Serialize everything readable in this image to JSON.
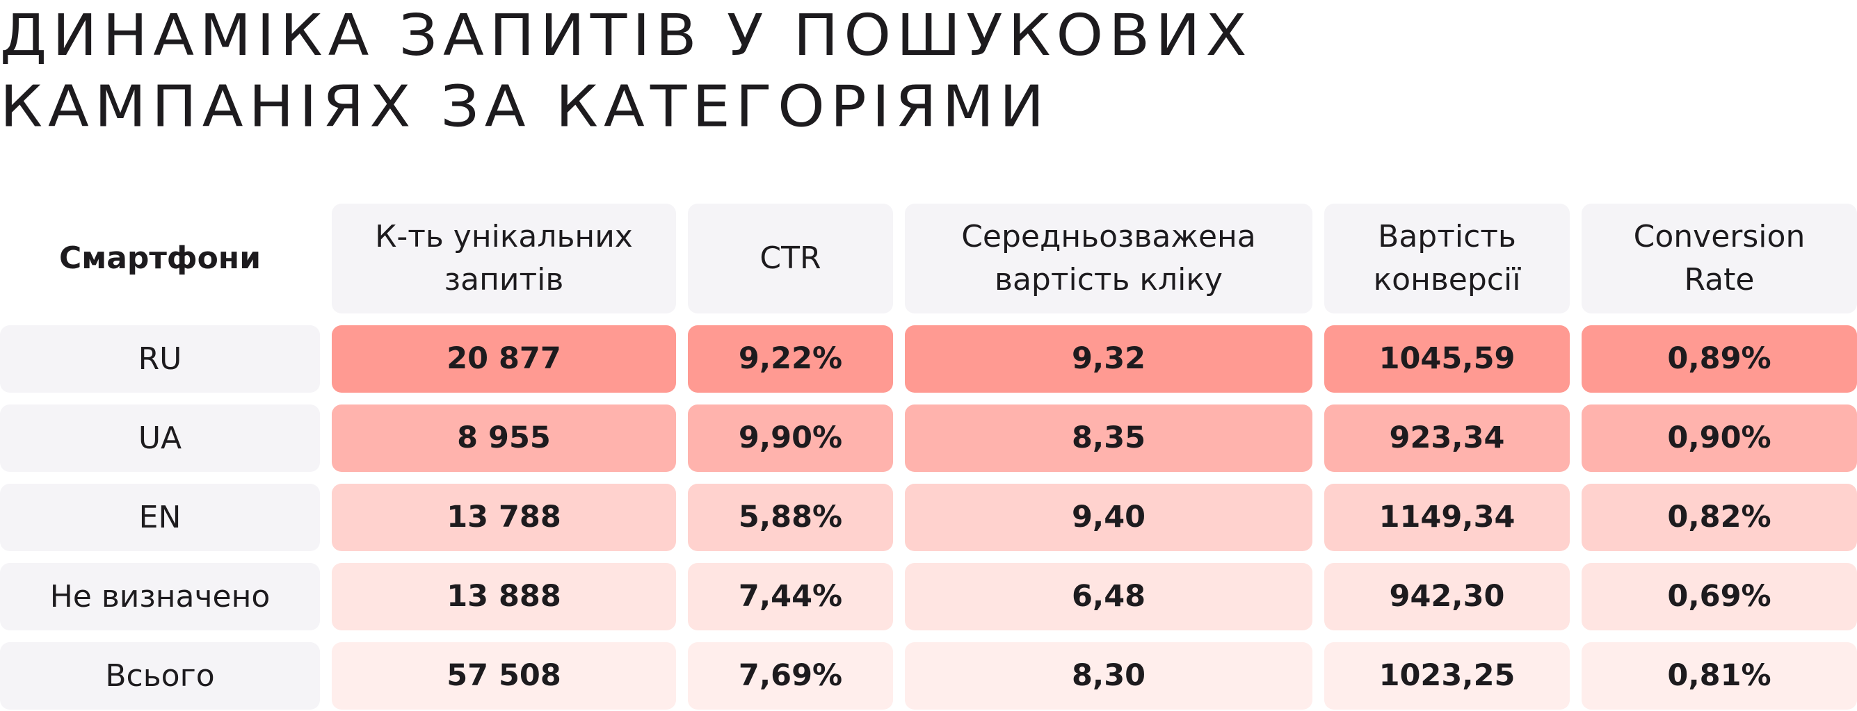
{
  "title": {
    "line1": "ДИНАМІКА ЗАПИТІВ У ПОШУКОВИХ",
    "line2": "КАМПАНІЯХ ЗА КАТЕГОРІЯМИ"
  },
  "table": {
    "header": [
      "Смартфони",
      "К-ть унікальних запитів",
      "CTR",
      "Середньозважена вартість кліку",
      "Вартість конверсії",
      "Conversion Rate"
    ],
    "rows": [
      [
        "RU",
        "20 877",
        "9,22%",
        "9,32",
        "1045,59",
        "0,89%"
      ],
      [
        "UA",
        "8 955",
        "9,90%",
        "8,35",
        "923,34",
        "0,90%"
      ],
      [
        "EN",
        "13 788",
        "5,88%",
        "9,40",
        "1149,34",
        "0,82%"
      ],
      [
        "Не визначено",
        "13 888",
        "7,44%",
        "6,48",
        "942,30",
        "0,69%"
      ],
      [
        "Всього",
        "57 508",
        "7,69%",
        "8,30",
        "1023,25",
        "0,81%"
      ]
    ]
  }
}
